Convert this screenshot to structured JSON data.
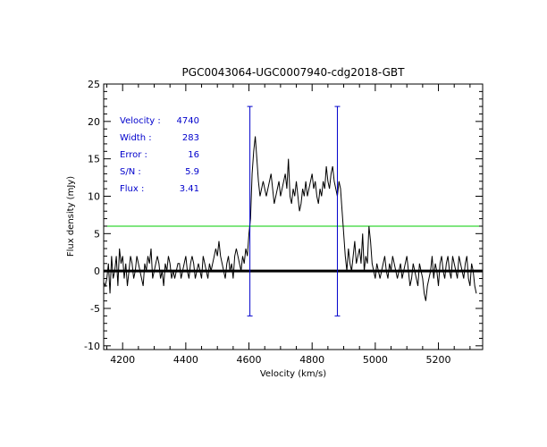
{
  "chart_data": {
    "type": "line",
    "title": "PGC0043064-UGC0007940-cdg2018-GBT",
    "xlabel": "Velocity (km/s)",
    "ylabel": "Flux density (mJy)",
    "xlim": [
      4140,
      5340
    ],
    "ylim": [
      -10.5,
      25
    ],
    "x_ticks": [
      4200,
      4400,
      4600,
      4800,
      5000,
      5200
    ],
    "x_tick_labels": [
      "4200",
      "4400",
      "4600",
      "4800",
      "5000",
      "5200"
    ],
    "y_ticks": [
      -10,
      -5,
      0,
      5,
      10,
      15,
      20,
      25
    ],
    "y_tick_labels": [
      "-10",
      "-5",
      "0",
      "5",
      "10",
      "15",
      "20",
      "25"
    ],
    "spectrum": {
      "start_velocity": 4140,
      "step": 5,
      "values": [
        -1.5,
        -2,
        -1,
        1,
        -3,
        2,
        -1,
        0,
        2,
        -2,
        3,
        1,
        2,
        -1,
        1,
        -2,
        0,
        2,
        1,
        -1,
        0,
        2,
        1,
        0,
        -1,
        -2,
        1,
        0,
        2,
        1,
        3,
        -1,
        0,
        1,
        2,
        1,
        -1,
        0,
        -2,
        1,
        0,
        2,
        1,
        -1,
        0,
        -1,
        0,
        1,
        1,
        -1,
        0,
        1,
        2,
        0,
        -1,
        1,
        2,
        1,
        -1,
        0,
        1,
        0,
        -1,
        2,
        1,
        0,
        -1,
        1,
        0,
        1,
        2,
        3,
        2,
        4,
        2,
        1,
        0,
        -1,
        1,
        2,
        0,
        1,
        -1,
        2,
        3,
        2,
        1,
        0,
        2,
        1,
        3,
        2,
        5,
        7,
        13,
        16,
        18,
        15,
        12,
        10,
        11,
        12,
        11,
        10,
        11,
        12,
        13,
        11,
        9,
        10,
        11,
        12,
        10,
        11,
        12,
        13,
        11,
        15,
        10,
        9,
        11,
        10,
        12,
        10,
        8,
        9,
        11,
        10,
        12,
        10,
        11,
        12,
        13,
        11,
        12,
        10,
        9,
        11,
        10,
        12,
        11,
        14,
        12,
        11,
        13,
        14,
        12,
        11,
        10,
        12,
        11,
        8,
        5,
        2,
        0,
        3,
        1,
        0,
        2,
        4,
        1,
        2,
        3,
        1,
        5,
        0,
        2,
        1,
        6,
        4,
        1,
        0,
        -1,
        1,
        0,
        -1,
        0,
        1,
        2,
        0,
        -1,
        1,
        0,
        2,
        1,
        0,
        -1,
        0,
        1,
        -1,
        0,
        1,
        2,
        0,
        -2,
        -1,
        1,
        0,
        -1,
        -2,
        1,
        0,
        -1,
        -3,
        -4,
        -2,
        -1,
        0,
        2,
        -1,
        1,
        0,
        -2,
        1,
        2,
        0,
        -1,
        1,
        2,
        0,
        -1,
        2,
        1,
        0,
        -1,
        2,
        1,
        0,
        -1,
        1,
        2,
        -1,
        -2,
        1,
        0,
        -2,
        -3
      ]
    },
    "reference_levels": {
      "zero_level": 0,
      "noise_threshold": 6
    },
    "channel_markers": {
      "velocities": [
        4603,
        4880
      ],
      "y_range": [
        -6,
        22
      ]
    },
    "colors": {
      "spectrum": "#000000",
      "zero_line": "#000000",
      "threshold_line": "#00cc00",
      "markers": "#0000cc",
      "info_text": "#0000cc"
    }
  },
  "info_box": [
    {
      "label": "Velocity :",
      "value": "4740"
    },
    {
      "label": "Width :",
      "value": "283"
    },
    {
      "label": "Error :",
      "value": "16"
    },
    {
      "label": "S/N :",
      "value": "5.9"
    },
    {
      "label": "Flux :",
      "value": "3.41"
    }
  ]
}
